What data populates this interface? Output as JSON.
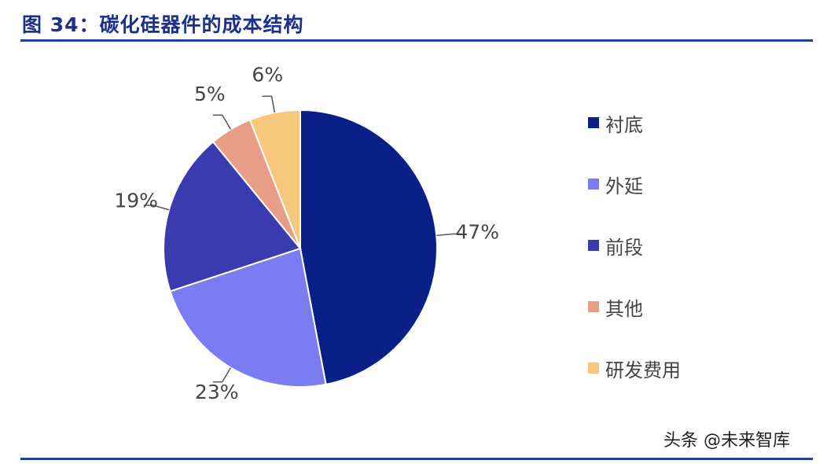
{
  "figure": {
    "title": "图 34：碳化硅器件的成本结构"
  },
  "watermark": "头条 @未来智库",
  "chart_data": {
    "type": "pie",
    "categories": [
      "衬底",
      "外延",
      "前段",
      "其他",
      "研发费用"
    ],
    "values": [
      47,
      23,
      19,
      5,
      6
    ],
    "data_labels": [
      "47%",
      "23%",
      "19%",
      "5%",
      "6%"
    ],
    "colors": [
      "#0a2088",
      "#7b7bf2",
      "#3b3bb0",
      "#e89d86",
      "#f6c77d"
    ],
    "legend_placement": "right",
    "start": "12 o'clock",
    "direction": "clockwise"
  }
}
